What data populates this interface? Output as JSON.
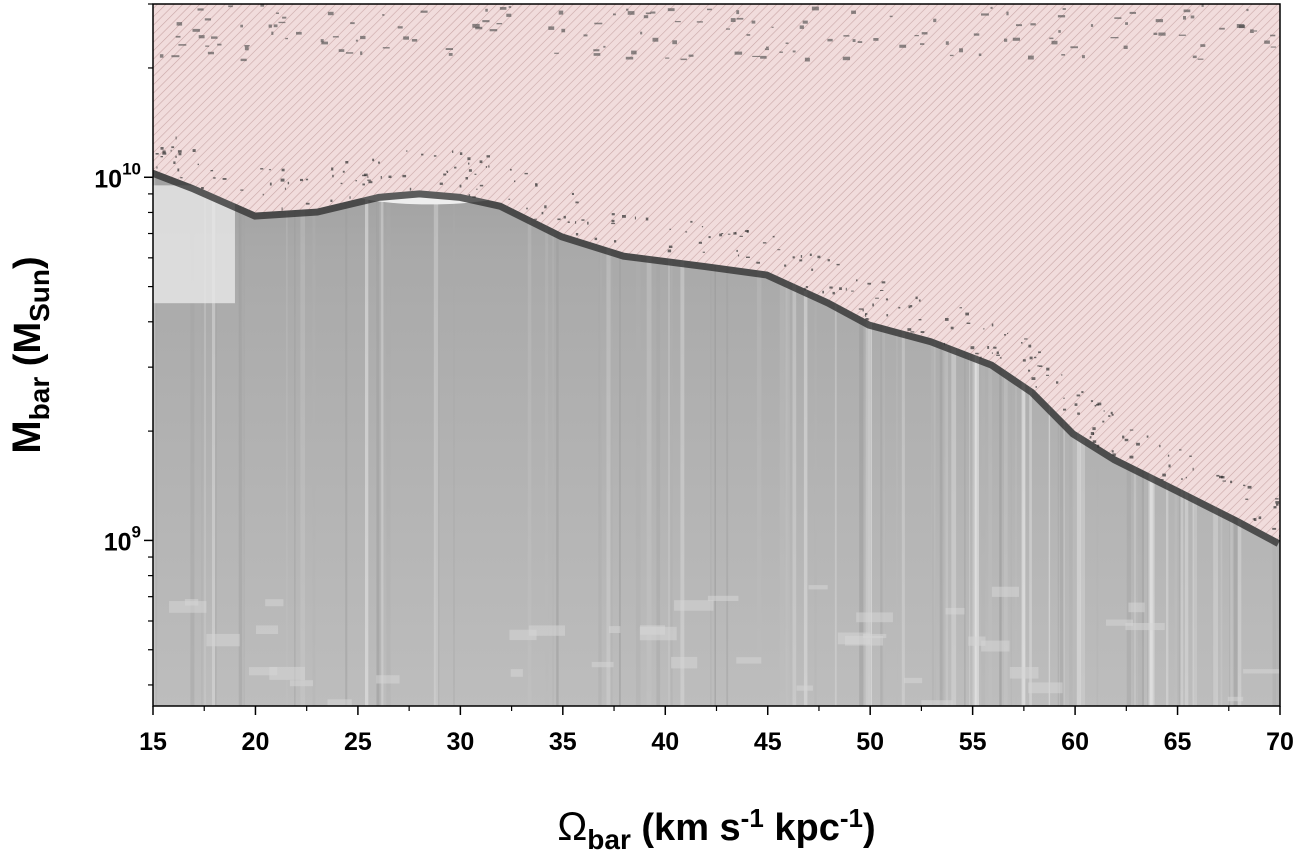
{
  "chart_data": {
    "type": "heatmap",
    "title": "",
    "xlabel": {
      "symbol": "Ω",
      "subscript": "bar",
      "unit_prefix": " (km s",
      "exp1": "-1",
      "unit_middle": " kpc",
      "exp2": "-1",
      "unit_suffix": ")"
    },
    "ylabel": {
      "symbol": "M",
      "subscript": "bar",
      "unit_prefix": " (M",
      "unit_subscript": "Sun",
      "unit_suffix": ")"
    },
    "xlim": [
      15,
      70
    ],
    "ylim": [
      350000000.0,
      30000000000.0
    ],
    "yscale": "log",
    "x_ticks": [
      15,
      20,
      25,
      30,
      35,
      40,
      45,
      50,
      55,
      60,
      65,
      70
    ],
    "x_tick_labels": [
      "15",
      "20",
      "25",
      "30",
      "35",
      "40",
      "45",
      "50",
      "55",
      "60",
      "65",
      "70"
    ],
    "y_major_ticks": [
      {
        "value": 1000000000.0,
        "base": "10",
        "exp": "9"
      },
      {
        "value": 10000000000.0,
        "base": "10",
        "exp": "10"
      }
    ],
    "colormap": {
      "bound_region": "grayscale",
      "unbound_region": "#efd9d9"
    },
    "boundary": {
      "description_free": true,
      "points": [
        [
          15.0,
          10500000000.0
        ],
        [
          17.0,
          9500000000.0
        ],
        [
          20.0,
          8000000000.0
        ],
        [
          23.0,
          8200000000.0
        ],
        [
          26.0,
          9000000000.0
        ],
        [
          28.0,
          9200000000.0
        ],
        [
          30.0,
          9000000000.0
        ],
        [
          32.0,
          8500000000.0
        ],
        [
          35.0,
          7000000000.0
        ],
        [
          38.0,
          6200000000.0
        ],
        [
          42.0,
          5800000000.0
        ],
        [
          45.0,
          5500000000.0
        ],
        [
          48.0,
          4600000000.0
        ],
        [
          50.0,
          4000000000.0
        ],
        [
          53.0,
          3600000000.0
        ],
        [
          56.0,
          3100000000.0
        ],
        [
          58.0,
          2600000000.0
        ],
        [
          60.0,
          2000000000.0
        ],
        [
          62.0,
          1700000000.0
        ],
        [
          65.0,
          1400000000.0
        ],
        [
          68.0,
          1150000000.0
        ],
        [
          70.0,
          1000000000.0
        ]
      ]
    },
    "grid": false,
    "legend": "none"
  },
  "colors": {
    "axis": "#000000",
    "background": "#ffffff"
  }
}
